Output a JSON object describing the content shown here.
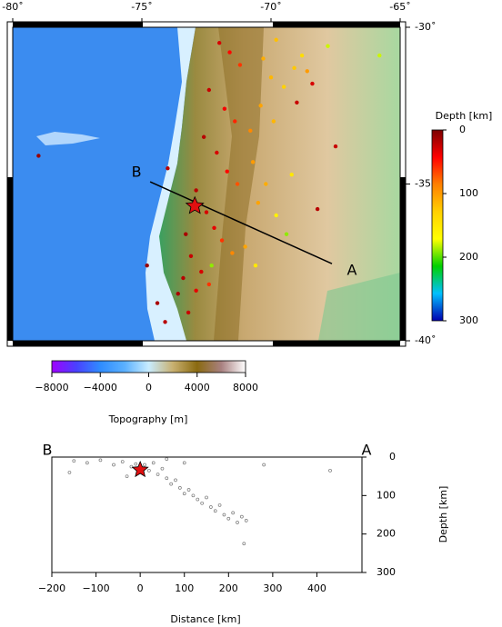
{
  "chart_data": [
    {
      "type": "map",
      "xlim": [
        -80,
        -65
      ],
      "ylim": [
        -40,
        -30
      ],
      "xticks": [
        {
          "value": -80,
          "label": "-80˚"
        },
        {
          "value": -75,
          "label": "-75˚"
        },
        {
          "value": -70,
          "label": "-70˚"
        },
        {
          "value": -65,
          "label": "-65˚"
        }
      ],
      "yticks": [
        {
          "value": -30,
          "label": "-30˚"
        },
        {
          "value": -35,
          "label": "-35˚"
        },
        {
          "value": -40,
          "label": "-40˚"
        }
      ],
      "points": {
        "x": [
          -72.0,
          -71.6,
          -71.2,
          -70.3,
          -70.0,
          -69.8,
          -69.5,
          -69.1,
          -68.8,
          -68.6,
          -67.8,
          -72.4,
          -71.8,
          -71.4,
          -70.8,
          -70.4,
          -69.9,
          -69.0,
          -68.4,
          -72.6,
          -72.1,
          -71.7,
          -71.3,
          -70.7,
          -70.2,
          -70.5,
          -69.8,
          -69.4,
          -72.9,
          -72.5,
          -72.2,
          -71.9,
          -71.5,
          -71.0,
          -70.6,
          -73.3,
          -73.1,
          -72.7,
          -73.4,
          -73.6,
          -72.9,
          -72.4,
          -74.8,
          -74.4,
          -74.1,
          -73.2,
          -72.3,
          -69.2,
          -68.2,
          -67.5,
          -79.0,
          -74.0,
          -65.8
        ],
        "y": [
          -30.5,
          -30.8,
          -31.2,
          -31.0,
          -31.6,
          -30.4,
          -31.9,
          -31.3,
          -30.9,
          -31.4,
          -30.6,
          -32.0,
          -32.6,
          -33.0,
          -33.3,
          -32.5,
          -33.0,
          -32.4,
          -31.8,
          -33.5,
          -34.0,
          -34.6,
          -35.0,
          -34.3,
          -35.0,
          -35.6,
          -36.0,
          -36.6,
          -35.2,
          -35.9,
          -36.4,
          -36.8,
          -37.2,
          -37.0,
          -37.6,
          -36.6,
          -37.3,
          -37.8,
          -38.0,
          -38.5,
          -38.4,
          -38.2,
          -37.6,
          -38.8,
          -39.4,
          -39.1,
          -37.6,
          -34.7,
          -35.8,
          -33.8,
          -34.1,
          -34.5,
          -30.9
        ],
        "depth": [
          30,
          45,
          60,
          110,
          115,
          120,
          130,
          125,
          140,
          100,
          180,
          25,
          40,
          55,
          90,
          105,
          115,
          25,
          30,
          20,
          30,
          45,
          70,
          100,
          110,
          105,
          160,
          190,
          20,
          30,
          35,
          60,
          90,
          105,
          150,
          15,
          25,
          30,
          20,
          15,
          35,
          60,
          10,
          15,
          20,
          25,
          190,
          150,
          20,
          25,
          10,
          20,
          180
        ]
      },
      "epicenter": {
        "x": -72.95,
        "y": -35.7
      },
      "profile": {
        "start_label": "B",
        "end_label": "A",
        "x": [
          -74.68,
          -67.64
        ],
        "y": [
          -34.93,
          -37.54
        ]
      }
    },
    {
      "type": "colorbar",
      "orientation": "vertical",
      "title": "Depth [km]",
      "ylim": [
        0,
        300
      ],
      "yticks": [
        0,
        100,
        200,
        300
      ],
      "colors": [
        "#7a0000",
        "#ff0000",
        "#ff8000",
        "#ffd000",
        "#ffff00",
        "#00d000",
        "#00c0ff",
        "#0000b0"
      ]
    },
    {
      "type": "colorbar",
      "orientation": "horizontal",
      "title": "Topography [m]",
      "xlim": [
        -8000,
        8000
      ],
      "xticks": [
        {
          "value": -8000,
          "label": "−8000"
        },
        {
          "value": -4000,
          "label": "−4000"
        },
        0,
        4000,
        8000
      ],
      "colors": [
        "#a000ff",
        "#4a40ff",
        "#2f8cff",
        "#5ab0ff",
        "#c8ecff",
        "#c8b070",
        "#8a6a10",
        "#a88080",
        "#ffffff"
      ]
    },
    {
      "type": "scatter",
      "xlabel": "Distance [km]",
      "ylabel": "Depth [km]",
      "left_label": "B",
      "right_label": "A",
      "xlim": [
        -200,
        502
      ],
      "ylim": [
        0,
        300
      ],
      "invert_y": true,
      "xticks": [
        {
          "value": -200,
          "label": "−200"
        },
        {
          "value": -100,
          "label": "−100"
        },
        0,
        100,
        200,
        300,
        400
      ],
      "yticks": [
        0,
        100,
        200,
        300
      ],
      "color": "#777777",
      "x": [
        -150,
        -120,
        -90,
        -60,
        -40,
        -20,
        -10,
        10,
        20,
        30,
        40,
        50,
        60,
        70,
        80,
        90,
        100,
        110,
        120,
        130,
        140,
        150,
        160,
        170,
        180,
        190,
        200,
        210,
        220,
        230,
        235,
        240,
        280,
        430,
        -160,
        60,
        100,
        -30
      ],
      "y": [
        10,
        15,
        8,
        20,
        12,
        25,
        18,
        20,
        35,
        15,
        45,
        30,
        55,
        70,
        60,
        80,
        95,
        85,
        100,
        110,
        120,
        105,
        130,
        140,
        125,
        150,
        160,
        145,
        170,
        155,
        225,
        165,
        20,
        35,
        40,
        5,
        15,
        50
      ],
      "epicenter": {
        "x": 0,
        "y": 33
      }
    }
  ]
}
